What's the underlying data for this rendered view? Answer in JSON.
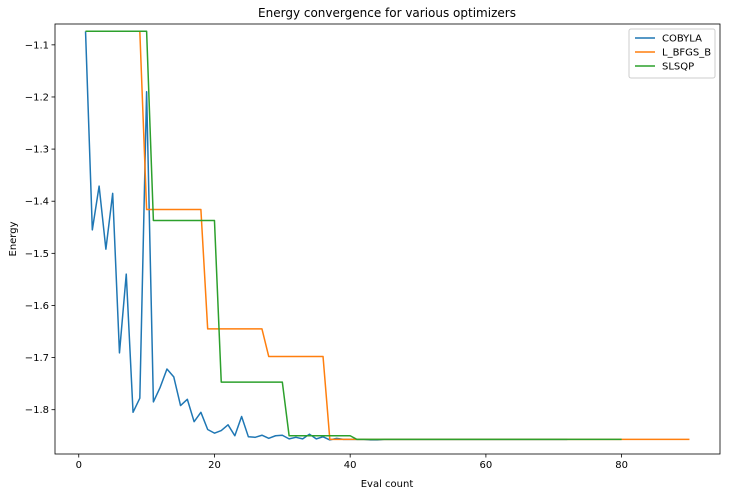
{
  "chart_data": {
    "type": "line",
    "title": "Energy convergence for various optimizers",
    "xlabel": "Eval count",
    "ylabel": "Energy",
    "xlim": [
      -3.5,
      94.5
    ],
    "ylim": [
      -1.885,
      -1.06
    ],
    "xticks": [
      0,
      20,
      40,
      60,
      80
    ],
    "xtick_labels": [
      "0",
      "20",
      "40",
      "60",
      "80"
    ],
    "yticks": [
      -1.1,
      -1.2,
      -1.3,
      -1.4,
      -1.5,
      -1.6,
      -1.7,
      -1.8
    ],
    "ytick_labels": [
      "−1.1",
      "−1.2",
      "−1.3",
      "−1.4",
      "−1.5",
      "−1.6",
      "−1.7",
      "−1.8"
    ],
    "grid": false,
    "legend_position": "top-right",
    "series": [
      {
        "name": "COBYLA",
        "color": "#1f77b4",
        "x": [
          1,
          2,
          3,
          4,
          5,
          6,
          7,
          8,
          9,
          10,
          11,
          12,
          13,
          14,
          15,
          16,
          17,
          18,
          19,
          20,
          21,
          22,
          23,
          24,
          25,
          26,
          27,
          28,
          29,
          30,
          31,
          32,
          33,
          34,
          35,
          36,
          37,
          38,
          39,
          40,
          41,
          42,
          43,
          44,
          45,
          46,
          72
        ],
        "y": [
          -1.074,
          -1.455,
          -1.371,
          -1.492,
          -1.385,
          -1.691,
          -1.54,
          -1.805,
          -1.778,
          -1.19,
          -1.785,
          -1.757,
          -1.722,
          -1.737,
          -1.792,
          -1.78,
          -1.823,
          -1.805,
          -1.838,
          -1.845,
          -1.84,
          -1.829,
          -1.85,
          -1.813,
          -1.852,
          -1.853,
          -1.849,
          -1.855,
          -1.85,
          -1.849,
          -1.856,
          -1.853,
          -1.856,
          -1.847,
          -1.856,
          -1.852,
          -1.858,
          -1.855,
          -1.857,
          -1.857,
          -1.857,
          -1.857,
          -1.858,
          -1.858,
          -1.857,
          -1.857,
          -1.857
        ]
      },
      {
        "name": "L_BFGS_B",
        "color": "#ff7f0e",
        "x": [
          1,
          9,
          10,
          18,
          19,
          27,
          28,
          36,
          37,
          45,
          46,
          90
        ],
        "y": [
          -1.074,
          -1.074,
          -1.416,
          -1.416,
          -1.645,
          -1.645,
          -1.698,
          -1.698,
          -1.857,
          -1.857,
          -1.857,
          -1.857
        ]
      },
      {
        "name": "SLSQP",
        "color": "#2ca02c",
        "x": [
          1,
          10,
          11,
          20,
          21,
          30,
          31,
          40,
          41,
          45,
          80
        ],
        "y": [
          -1.074,
          -1.074,
          -1.437,
          -1.437,
          -1.747,
          -1.747,
          -1.85,
          -1.85,
          -1.857,
          -1.857,
          -1.857
        ]
      }
    ]
  }
}
